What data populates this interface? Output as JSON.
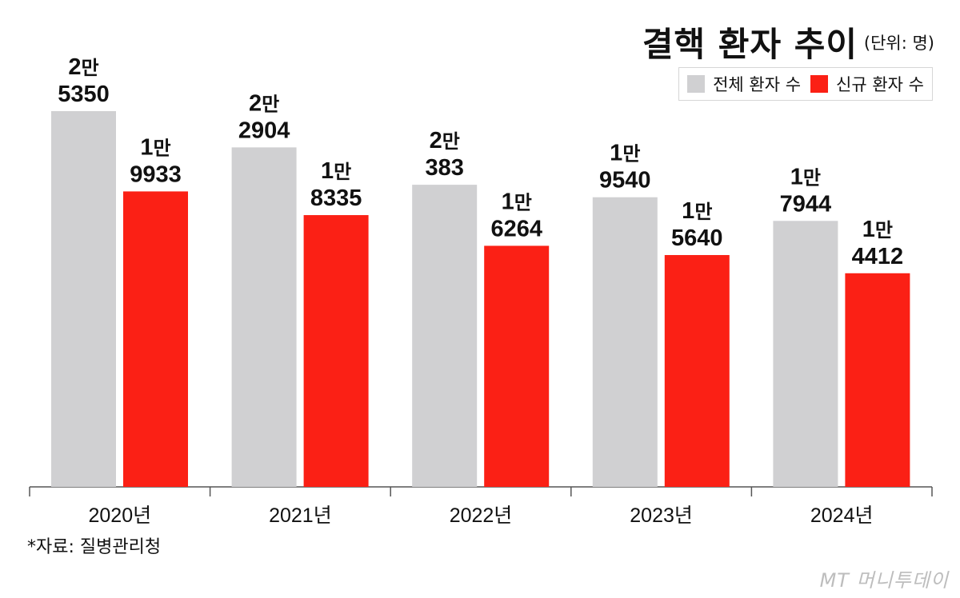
{
  "title": "결핵 환자 추이",
  "unit": "(단위: 명)",
  "legend": [
    {
      "label": "전체 환자 수",
      "color": "#d0d0d2"
    },
    {
      "label": "신규 환자 수",
      "color": "#fb2015"
    }
  ],
  "source": "*자료: 질병관리청",
  "watermark": "MT 머니투데이",
  "chart_data": {
    "type": "bar",
    "categories": [
      "2020년",
      "2021년",
      "2022년",
      "2023년",
      "2024년"
    ],
    "series": [
      {
        "name": "전체 환자 수",
        "color": "#d0d0d2",
        "values": [
          25350,
          22904,
          20383,
          19540,
          17944
        ],
        "labels": [
          [
            "2만",
            "5350"
          ],
          [
            "2만",
            "2904"
          ],
          [
            "2만",
            "383"
          ],
          [
            "1만",
            "9540"
          ],
          [
            "1만",
            "7944"
          ]
        ]
      },
      {
        "name": "신규 환자 수",
        "color": "#fb2015",
        "values": [
          19933,
          18335,
          16264,
          15640,
          14412
        ],
        "labels": [
          [
            "1만",
            "9933"
          ],
          [
            "1만",
            "8335"
          ],
          [
            "1만",
            "6264"
          ],
          [
            "1만",
            "5640"
          ],
          [
            "1만",
            "4412"
          ]
        ]
      }
    ],
    "ylim": [
      0,
      25350
    ],
    "xlabel": "",
    "ylabel": "",
    "grid": false,
    "legend_position": "top-right"
  }
}
